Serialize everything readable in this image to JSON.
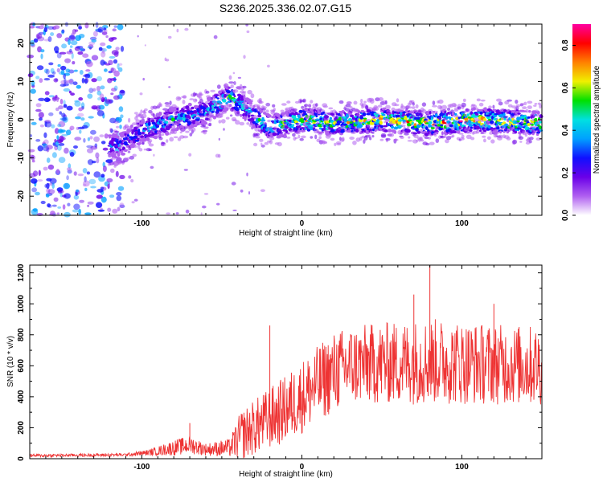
{
  "title": "S236.2025.336.02.07.G15",
  "chart_data": [
    {
      "type": "heatmap",
      "name": "spectrogram",
      "xlabel": "Height of straight line (km)",
      "ylabel": "Frequency (Hz)",
      "xlim": [
        -170,
        150
      ],
      "ylim": [
        -25,
        25
      ],
      "xticks": [
        -100,
        0,
        100
      ],
      "yticks": [
        -20,
        -10,
        0,
        10,
        20
      ],
      "colorbar": {
        "label": "Normalized spectral amplitude",
        "range": [
          0,
          0.9
        ],
        "ticks": [
          0,
          0.2,
          0.4,
          0.6,
          0.8
        ],
        "colors": [
          "#ffffff",
          "#b060f0",
          "#6a00e8",
          "#1010ff",
          "#00a0ff",
          "#00e0e0",
          "#00e000",
          "#f0f000",
          "#ff8000",
          "#ff0000",
          "#ff00a0"
        ]
      },
      "ridge": {
        "x": [
          -115,
          -100,
          -80,
          -60,
          -45,
          -38,
          -30,
          -20,
          -10,
          0,
          20,
          50,
          80,
          110,
          150
        ],
        "freq": [
          -7,
          -3,
          0,
          2,
          6,
          4,
          1,
          -2,
          -1,
          0,
          -1,
          0,
          -1,
          0,
          -1
        ],
        "peak_amplitude": [
          0.35,
          0.4,
          0.45,
          0.45,
          0.55,
          0.5,
          0.5,
          0.55,
          0.6,
          0.7,
          0.65,
          0.7,
          0.75,
          0.75,
          0.7
        ]
      },
      "noise_region_x": [
        -170,
        -120
      ]
    },
    {
      "type": "line",
      "name": "snr",
      "xlabel": "Height of straight line (km)",
      "ylabel": "SNR (10 * v/v)",
      "xlim": [
        -170,
        150
      ],
      "ylim": [
        0,
        1250
      ],
      "xticks": [
        -100,
        0,
        100
      ],
      "yticks": [
        0,
        200,
        400,
        600,
        800,
        1000,
        1200
      ],
      "color": "#ee3333",
      "envelope": {
        "x": [
          -170,
          -110,
          -95,
          -80,
          -70,
          -60,
          -45,
          -38,
          -30,
          -20,
          -10,
          0,
          10,
          20,
          30,
          40,
          60,
          80,
          100,
          120,
          150
        ],
        "mean": [
          20,
          25,
          40,
          70,
          90,
          60,
          70,
          150,
          200,
          260,
          320,
          400,
          480,
          560,
          600,
          610,
          620,
          630,
          620,
          610,
          600
        ],
        "spread": [
          10,
          10,
          20,
          50,
          60,
          40,
          60,
          160,
          180,
          200,
          220,
          240,
          250,
          260,
          260,
          260,
          270,
          280,
          270,
          260,
          260
        ]
      },
      "spikes": [
        {
          "x": -70,
          "y": 230
        },
        {
          "x": -20,
          "y": 860
        },
        {
          "x": 80,
          "y": 1250
        },
        {
          "x": 70,
          "y": 1060
        },
        {
          "x": 120,
          "y": 1000
        }
      ]
    }
  ]
}
